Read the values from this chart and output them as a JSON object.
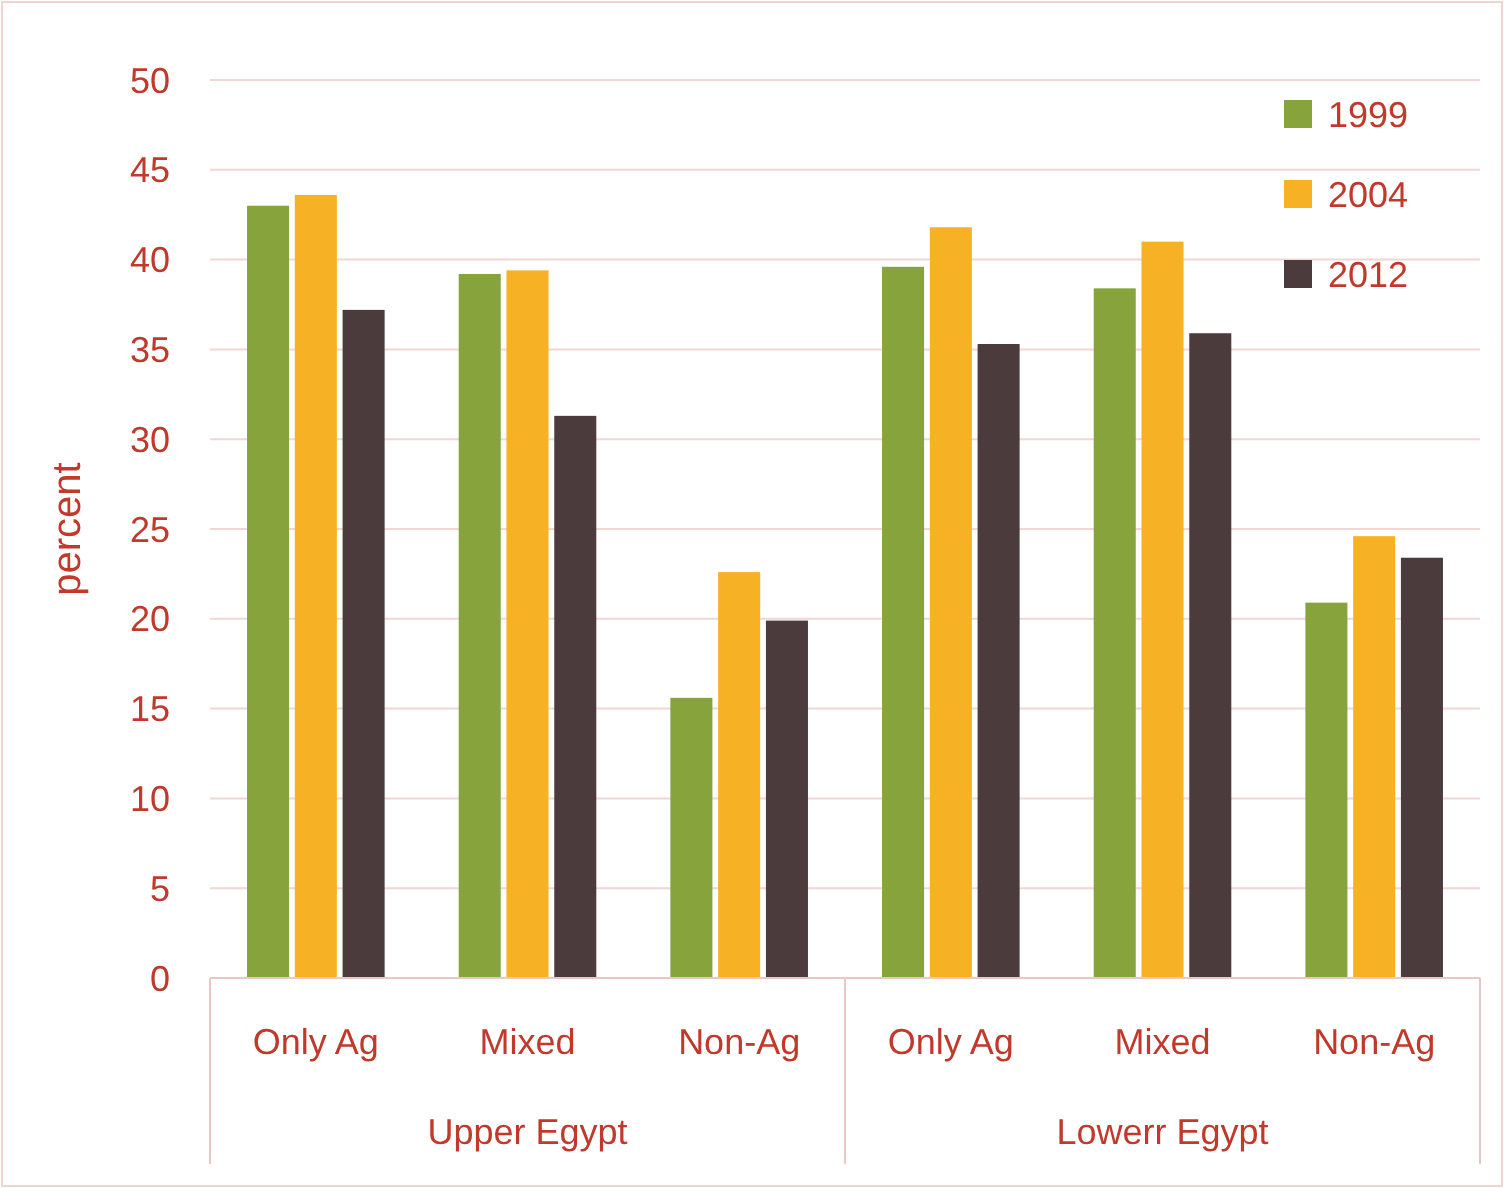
{
  "chart_data": {
    "type": "bar",
    "ylabel": "percent",
    "categories": [
      "Only Ag",
      "Mixed",
      "Non-Ag",
      "Only Ag",
      "Mixed",
      "Non-Ag"
    ],
    "series": [
      {
        "name": "1999",
        "color": "#86a33c",
        "values": [
          43.0,
          39.2,
          15.6,
          39.6,
          38.4,
          20.9
        ]
      },
      {
        "name": "2004",
        "color": "#f7b125",
        "values": [
          43.6,
          39.4,
          22.6,
          41.8,
          41.0,
          24.6
        ]
      },
      {
        "name": "2012",
        "color": "#4b3b3c",
        "values": [
          37.2,
          31.3,
          19.9,
          35.3,
          35.9,
          23.4
        ]
      }
    ],
    "annotations": [
      "Upper Egypt",
      "Lowerr Egypt"
    ],
    "ylim": [
      0,
      50
    ],
    "yticks": [
      0,
      5,
      10,
      15,
      20,
      25,
      30,
      35,
      40,
      45,
      50
    ],
    "grid": "y",
    "legend": "top right"
  }
}
